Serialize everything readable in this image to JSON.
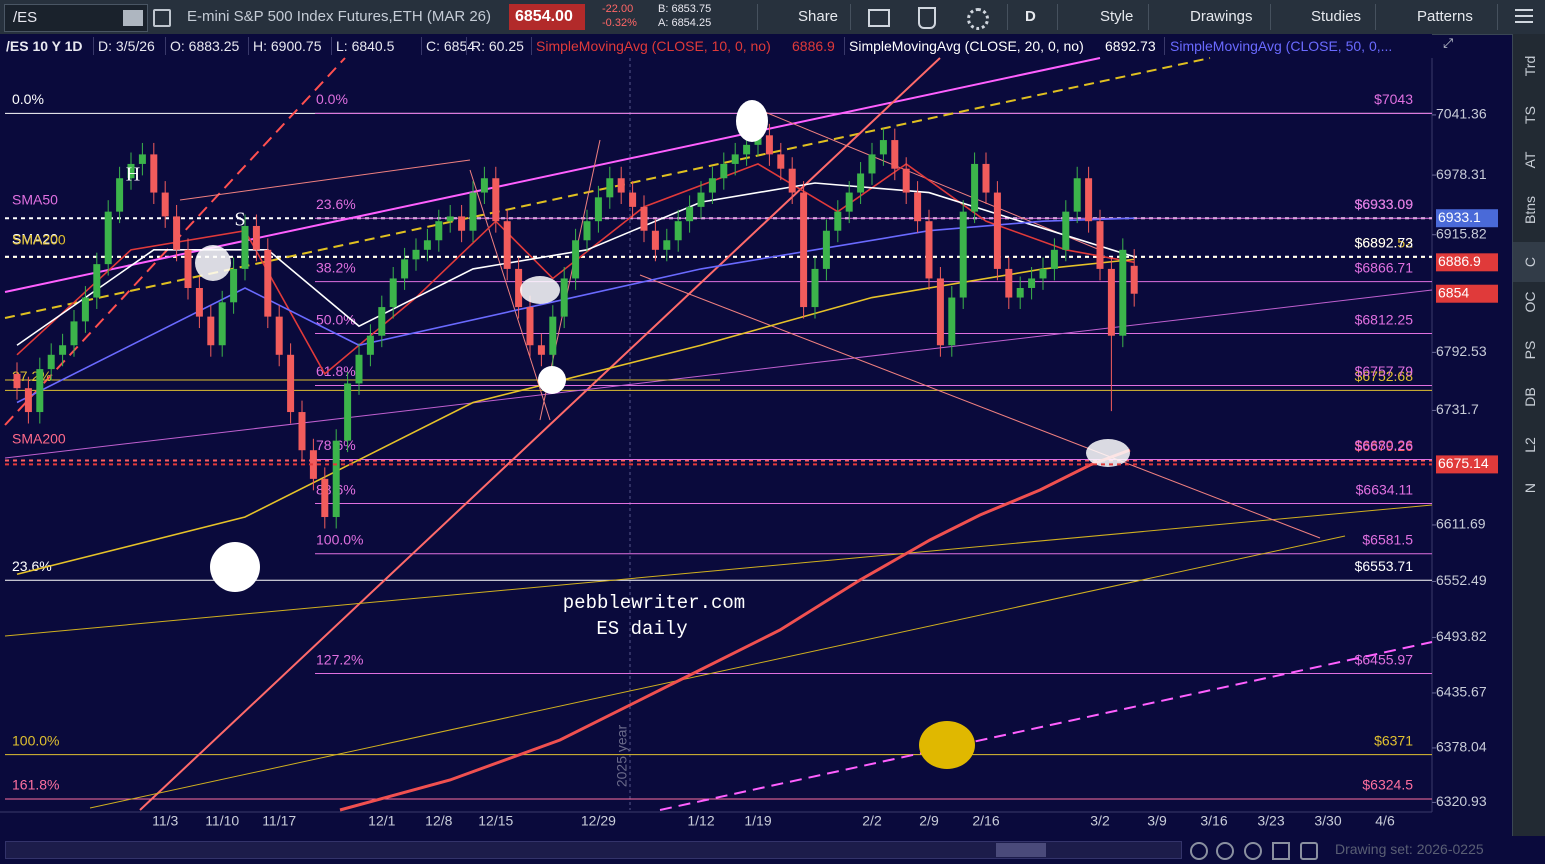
{
  "toolbar": {
    "symbol": "/ES",
    "description": "E-mini S&P 500 Index Futures,ETH (MAR 26)",
    "last": "6854.00",
    "change": "-22.00",
    "change_pct": "-0.32%",
    "bid": "B: 6853.75",
    "ask": "A: 6854.25",
    "buttons": [
      "Share",
      "D",
      "Style",
      "Drawings",
      "Studies",
      "Patterns"
    ]
  },
  "info_bar": [
    "/ES 10 Y 1D",
    "D: 3/5/26",
    "O: 6883.25",
    "H: 6900.75",
    "L: 6840.5",
    "C: 6854",
    "R: 60.25"
  ],
  "sidebar": [
    "Trd",
    "TS",
    "AT",
    "Btns",
    "C",
    "OC",
    "PS",
    "DB",
    "L2",
    "N"
  ],
  "annotations": [
    "SMA50",
    "SMA20",
    "SMA200",
    "SMA200",
    "H",
    "S",
    "pebblewriter.com",
    "ES daily",
    "2025 year"
  ],
  "footer": {
    "drawing_set": "Drawing set: 2026-0225"
  },
  "chart_data": {
    "type": "candlestick",
    "categories": [
      null,
      null,
      null,
      null,
      null,
      null,
      null,
      null,
      null,
      null,
      null,
      null,
      null,
      "11/3",
      null,
      null,
      null,
      null,
      "11/10",
      null,
      null,
      null,
      null,
      "11/17",
      null,
      null,
      null,
      null,
      null,
      null,
      null,
      null,
      "12/1",
      null,
      null,
      null,
      null,
      "12/8",
      null,
      null,
      null,
      null,
      "12/15",
      null,
      null,
      null,
      null,
      null,
      null,
      null,
      null,
      "12/29",
      null,
      null,
      null,
      null,
      null,
      null,
      null,
      null,
      "1/12",
      null,
      null,
      null,
      null,
      "1/19",
      null,
      null,
      null,
      null,
      null,
      null,
      null,
      null,
      null,
      "2/2",
      null,
      null,
      null,
      null,
      "2/9",
      null,
      null,
      null,
      null,
      "2/16",
      null,
      null,
      null,
      null,
      null,
      null,
      null,
      null,
      null,
      "3/2",
      null,
      null,
      null
    ],
    "future_categories": [
      "3/9",
      "3/16",
      "3/23",
      "3/30",
      "4/6"
    ],
    "open": [
      6770,
      6755,
      6730,
      6775,
      6790,
      6800,
      6825,
      6850,
      6885,
      6940,
      6975,
      6990,
      7000,
      6960,
      6935,
      6900,
      6860,
      6830,
      6800,
      6845,
      6880,
      6925,
      6900,
      6830,
      6790,
      6730,
      6690,
      6660,
      6620,
      6700,
      6760,
      6790,
      6810,
      6840,
      6870,
      6890,
      6900,
      6910,
      6930,
      6935,
      6920,
      6960,
      6975,
      6930,
      6880,
      6840,
      6800,
      6790,
      6830,
      6870,
      6910,
      6930,
      6955,
      6975,
      6960,
      6945,
      6920,
      6900,
      6910,
      6930,
      6945,
      6960,
      6975,
      6990,
      7000,
      7010,
      7020,
      7000,
      6985,
      6960,
      6840,
      6880,
      6920,
      6940,
      6960,
      6980,
      7000,
      7015,
      6985,
      6960,
      6930,
      6870,
      6800,
      6850,
      6940,
      6990,
      6960,
      6880,
      6850,
      6860,
      6870,
      6880,
      6900,
      6940,
      6975,
      6930,
      6880,
      6810,
      6883.25
    ],
    "high": [
      6782,
      6767,
      6787,
      6802,
      6812,
      6837,
      6862,
      6897,
      6952,
      6987,
      7002,
      7012,
      7012,
      6972,
      6947,
      6912,
      6872,
      6842,
      6857,
      6892,
      6937,
      6937,
      6912,
      6842,
      6802,
      6742,
      6702,
      6672,
      6712,
      6772,
      6802,
      6822,
      6852,
      6882,
      6902,
      6912,
      6922,
      6942,
      6947,
      6947,
      6972,
      6987,
      6987,
      6942,
      6892,
      6852,
      6812,
      6842,
      6882,
      6922,
      6942,
      6967,
      6987,
      6987,
      6972,
      6957,
      6932,
      6922,
      6942,
      6957,
      6972,
      6987,
      7002,
      7012,
      7022,
      7032,
      7032,
      7012,
      6997,
      6972,
      6892,
      6932,
      6952,
      6972,
      6992,
      7012,
      7027,
      7027,
      6997,
      6972,
      6942,
      6882,
      6862,
      6952,
      7002,
      7002,
      6972,
      6892,
      6872,
      6882,
      6892,
      6912,
      6952,
      6987,
      6987,
      6942,
      6892,
      6912,
      6900.75
    ],
    "low": [
      6743,
      6718,
      6718,
      6763,
      6778,
      6788,
      6813,
      6838,
      6873,
      6928,
      6963,
      6978,
      6948,
      6923,
      6888,
      6848,
      6818,
      6788,
      6788,
      6833,
      6868,
      6888,
      6818,
      6778,
      6718,
      6678,
      6648,
      6608,
      6608,
      6688,
      6748,
      6778,
      6798,
      6828,
      6858,
      6878,
      6888,
      6898,
      6918,
      6908,
      6908,
      6948,
      6918,
      6868,
      6828,
      6788,
      6778,
      6778,
      6818,
      6858,
      6898,
      6918,
      6943,
      6948,
      6933,
      6908,
      6888,
      6888,
      6898,
      6918,
      6933,
      6948,
      6963,
      6978,
      6988,
      6998,
      6988,
      6973,
      6948,
      6828,
      6828,
      6868,
      6908,
      6928,
      6948,
      6968,
      6988,
      6973,
      6948,
      6918,
      6858,
      6788,
      6788,
      6838,
      6928,
      6948,
      6868,
      6838,
      6838,
      6848,
      6858,
      6868,
      6888,
      6928,
      6918,
      6868,
      6731,
      6798,
      6840.5
    ],
    "close": [
      6755,
      6730,
      6775,
      6790,
      6800,
      6825,
      6850,
      6885,
      6940,
      6975,
      6990,
      7000,
      6960,
      6935,
      6900,
      6860,
      6830,
      6800,
      6845,
      6880,
      6925,
      6900,
      6830,
      6790,
      6730,
      6690,
      6660,
      6620,
      6700,
      6760,
      6790,
      6810,
      6840,
      6870,
      6890,
      6900,
      6910,
      6930,
      6935,
      6920,
      6960,
      6975,
      6930,
      6880,
      6840,
      6800,
      6790,
      6830,
      6870,
      6910,
      6930,
      6955,
      6975,
      6960,
      6945,
      6920,
      6900,
      6910,
      6930,
      6945,
      6960,
      6975,
      6990,
      7000,
      7010,
      7020,
      7000,
      6985,
      6960,
      6840,
      6880,
      6920,
      6940,
      6960,
      6980,
      7000,
      7015,
      6985,
      6960,
      6930,
      6870,
      6800,
      6850,
      6940,
      6990,
      6960,
      6880,
      6850,
      6860,
      6870,
      6880,
      6900,
      6940,
      6975,
      6930,
      6880,
      6810,
      6900,
      6854
    ],
    "up_color": "#3cb44b",
    "down_color": "#f25c5c",
    "series": [
      {
        "name": "SimpleMovingAvg (CLOSE, 10, 0, no)",
        "color": "#e03a3a",
        "x": [
          0,
          10,
          20,
          27,
          35,
          42,
          47,
          55,
          65,
          72,
          78,
          85,
          92,
          98
        ],
        "values": [
          6790,
          6900,
          6920,
          6770,
          6850,
          6930,
          6870,
          6945,
          6990,
          6940,
          6990,
          6930,
          6900,
          6886.9
        ]
      },
      {
        "name": "SimpleMovingAvg (CLOSE, 20, 0, no)",
        "color": "#ffffff",
        "x": [
          0,
          12,
          22,
          30,
          40,
          50,
          60,
          70,
          80,
          88,
          98
        ],
        "values": [
          6800,
          6900,
          6900,
          6820,
          6880,
          6900,
          6950,
          6970,
          6960,
          6930,
          6892.73
        ]
      },
      {
        "name": "SimpleMovingAvg (CLOSE, 50, 0,...",
        "color": "#6a6aff",
        "x": [
          0,
          20,
          30,
          45,
          60,
          70,
          80,
          90,
          98
        ],
        "values": [
          6740,
          6860,
          6800,
          6840,
          6880,
          6900,
          6920,
          6930,
          6933.1
        ]
      },
      {
        "color": "#e6c229",
        "x": [
          0,
          20,
          40,
          60,
          75,
          90,
          98
        ],
        "values": [
          6560,
          6620,
          6740,
          6800,
          6850,
          6880,
          6890
        ]
      }
    ],
    "fib_levels_full": [
      {
        "value": 7043,
        "pct": "0.0%",
        "color": "#ffffff"
      },
      {
        "value": 6752.68,
        "pct": "27.2%",
        "label": "$6752.68",
        "color": "#e0c030"
      },
      {
        "value": 6553.71,
        "pct": "23.6%",
        "label": "$6553.71",
        "color": "#ffffff"
      },
      {
        "value": 6371,
        "pct": "100.0%",
        "label": "$6371",
        "color": "#e0c030"
      },
      {
        "value": 6324.5,
        "pct": "161.8%",
        "label": "$6324.5",
        "color": "#ff70a0"
      },
      {
        "value": 6933.09,
        "label": "$6933.09",
        "color": "#ffffff",
        "dashed": true
      },
      {
        "value": 6892.52,
        "label": "$6892.52",
        "color": "#e0c030",
        "dashed": true
      },
      {
        "value": 6892.73,
        "label": "$6892.73",
        "color": "#ffffff",
        "dashed": true
      },
      {
        "value": 6679.26,
        "label": "$6679.26",
        "color": "#ff6060",
        "dashed": true
      }
    ],
    "fib_levels_short": [
      {
        "value": 7043,
        "pct": "0.0%",
        "label": "$7043",
        "color": "#e070e0"
      },
      {
        "value": 6933.09,
        "pct": "23.6%",
        "label": "$6933.09",
        "color": "#e070e0"
      },
      {
        "value": 6866.71,
        "pct": "38.2%",
        "label": "$6866.71",
        "color": "#e070e0"
      },
      {
        "value": 6812.25,
        "pct": "50.0%",
        "label": "$6812.25",
        "color": "#e070e0"
      },
      {
        "value": 6757.79,
        "pct": "61.8%",
        "label": "$6757.79",
        "color": "#e070e0"
      },
      {
        "value": 6680.26,
        "pct": "78.6%",
        "label": "$6680.26",
        "color": "#e070e0"
      },
      {
        "value": 6634.11,
        "pct": "88.6%",
        "label": "$6634.11",
        "color": "#e070e0"
      },
      {
        "value": 6581.5,
        "pct": "100.0%",
        "label": "$6581.5",
        "color": "#e070e0"
      },
      {
        "value": 6455.97,
        "pct": "127.2%",
        "label": "$6455.97",
        "color": "#e070e0"
      }
    ],
    "price_badges": [
      {
        "value": 6933.1,
        "color": "#4a6ad8"
      },
      {
        "value": 6886.9,
        "color": "#e03a3a"
      },
      {
        "value": 6854,
        "color": "#e03a3a"
      },
      {
        "value": 6675.14,
        "color": "#e03a3a"
      }
    ],
    "ylim": [
      6313,
      7101
    ],
    "yticks": [
      7041.36,
      6978.31,
      6915.82,
      6792.53,
      6731.7,
      6611.69,
      6552.49,
      6493.82,
      6435.67,
      6378.04,
      6320.93
    ]
  }
}
